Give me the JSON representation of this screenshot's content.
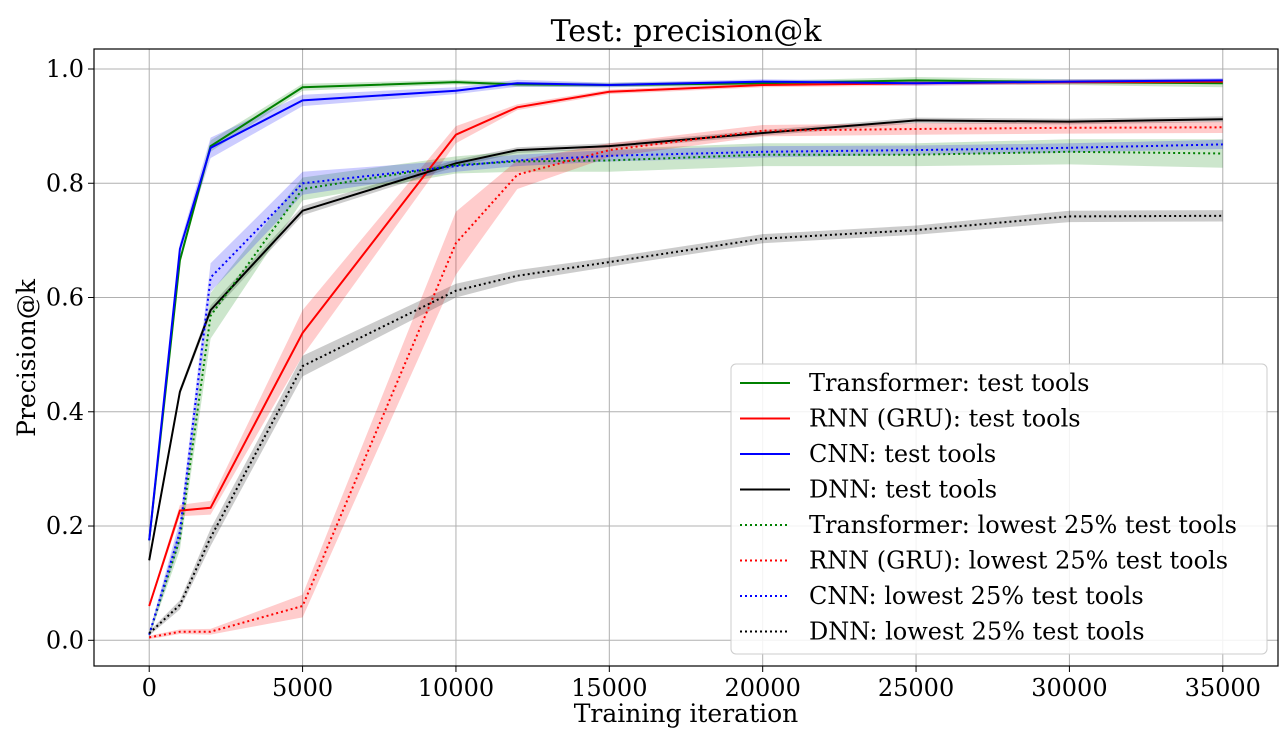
{
  "chart_data": {
    "type": "line",
    "title": "Test: precision@k",
    "xlabel": "Training iteration",
    "ylabel": "Precision@k",
    "xlim": [
      -1800,
      36800
    ],
    "ylim": [
      -0.045,
      1.035
    ],
    "xticks": [
      0,
      5000,
      10000,
      15000,
      20000,
      25000,
      30000,
      35000
    ],
    "xtick_labels": [
      "0",
      "5000",
      "10000",
      "15000",
      "20000",
      "25000",
      "30000",
      "35000"
    ],
    "yticks": [
      0.0,
      0.2,
      0.4,
      0.6,
      0.8,
      1.0
    ],
    "ytick_labels": [
      "0.0",
      "0.2",
      "0.4",
      "0.6",
      "0.8",
      "1.0"
    ],
    "grid": true,
    "legend_position": "lower-right",
    "x": [
      0,
      1000,
      2000,
      5000,
      10000,
      12000,
      15000,
      20000,
      25000,
      30000,
      35000
    ],
    "series": [
      {
        "name": "Transformer: test tools",
        "color": "#008000",
        "style": "solid",
        "values": [
          0.175,
          0.665,
          0.865,
          0.968,
          0.977,
          0.973,
          0.972,
          0.975,
          0.98,
          0.977,
          0.975
        ],
        "band": [
          0.006,
          0.006,
          0.01,
          0.006,
          0.004,
          0.004,
          0.004,
          0.004,
          0.006,
          0.005,
          0.007
        ]
      },
      {
        "name": "RNN (GRU): test tools",
        "color": "#ff0000",
        "style": "solid",
        "values": [
          0.06,
          0.227,
          0.232,
          0.538,
          0.885,
          0.933,
          0.96,
          0.972,
          0.975,
          0.977,
          0.978
        ],
        "band": [
          0.004,
          0.01,
          0.012,
          0.04,
          0.015,
          0.005,
          0.004,
          0.004,
          0.004,
          0.004,
          0.004
        ]
      },
      {
        "name": "CNN: test tools",
        "color": "#0000ff",
        "style": "solid",
        "values": [
          0.175,
          0.685,
          0.862,
          0.945,
          0.962,
          0.975,
          0.972,
          0.978,
          0.975,
          0.978,
          0.98
        ],
        "band": [
          0.006,
          0.01,
          0.018,
          0.01,
          0.006,
          0.006,
          0.004,
          0.004,
          0.004,
          0.004,
          0.004
        ]
      },
      {
        "name": "DNN: test tools",
        "color": "#000000",
        "style": "solid",
        "values": [
          0.14,
          0.435,
          0.578,
          0.752,
          0.835,
          0.858,
          0.865,
          0.888,
          0.91,
          0.908,
          0.912
        ],
        "band": [
          0.004,
          0.006,
          0.008,
          0.008,
          0.006,
          0.005,
          0.005,
          0.005,
          0.005,
          0.005,
          0.005
        ]
      },
      {
        "name": "Transformer: lowest 25% test tools",
        "color": "#008000",
        "style": "dotted",
        "values": [
          0.01,
          0.178,
          0.568,
          0.79,
          0.832,
          0.838,
          0.84,
          0.85,
          0.85,
          0.855,
          0.852
        ],
        "band": [
          0.004,
          0.02,
          0.04,
          0.02,
          0.015,
          0.018,
          0.02,
          0.02,
          0.02,
          0.022,
          0.025
        ]
      },
      {
        "name": "RNN (GRU): lowest 25% test tools",
        "color": "#ff0000",
        "style": "dotted",
        "values": [
          0.005,
          0.015,
          0.015,
          0.06,
          0.695,
          0.815,
          0.858,
          0.892,
          0.895,
          0.897,
          0.898
        ],
        "band": [
          0.003,
          0.004,
          0.005,
          0.02,
          0.055,
          0.025,
          0.012,
          0.01,
          0.01,
          0.01,
          0.01
        ]
      },
      {
        "name": "CNN: lowest 25% test tools",
        "color": "#0000ff",
        "style": "dotted",
        "values": [
          0.01,
          0.19,
          0.635,
          0.8,
          0.83,
          0.84,
          0.848,
          0.855,
          0.858,
          0.862,
          0.868
        ],
        "band": [
          0.004,
          0.02,
          0.025,
          0.02,
          0.01,
          0.01,
          0.01,
          0.01,
          0.008,
          0.008,
          0.008
        ]
      },
      {
        "name": "DNN: lowest 25% test tools",
        "color": "#000000",
        "style": "dotted",
        "values": [
          0.012,
          0.062,
          0.18,
          0.48,
          0.612,
          0.638,
          0.662,
          0.703,
          0.718,
          0.742,
          0.743
        ],
        "band": [
          0.004,
          0.008,
          0.015,
          0.018,
          0.012,
          0.01,
          0.008,
          0.008,
          0.008,
          0.01,
          0.01
        ]
      }
    ]
  }
}
